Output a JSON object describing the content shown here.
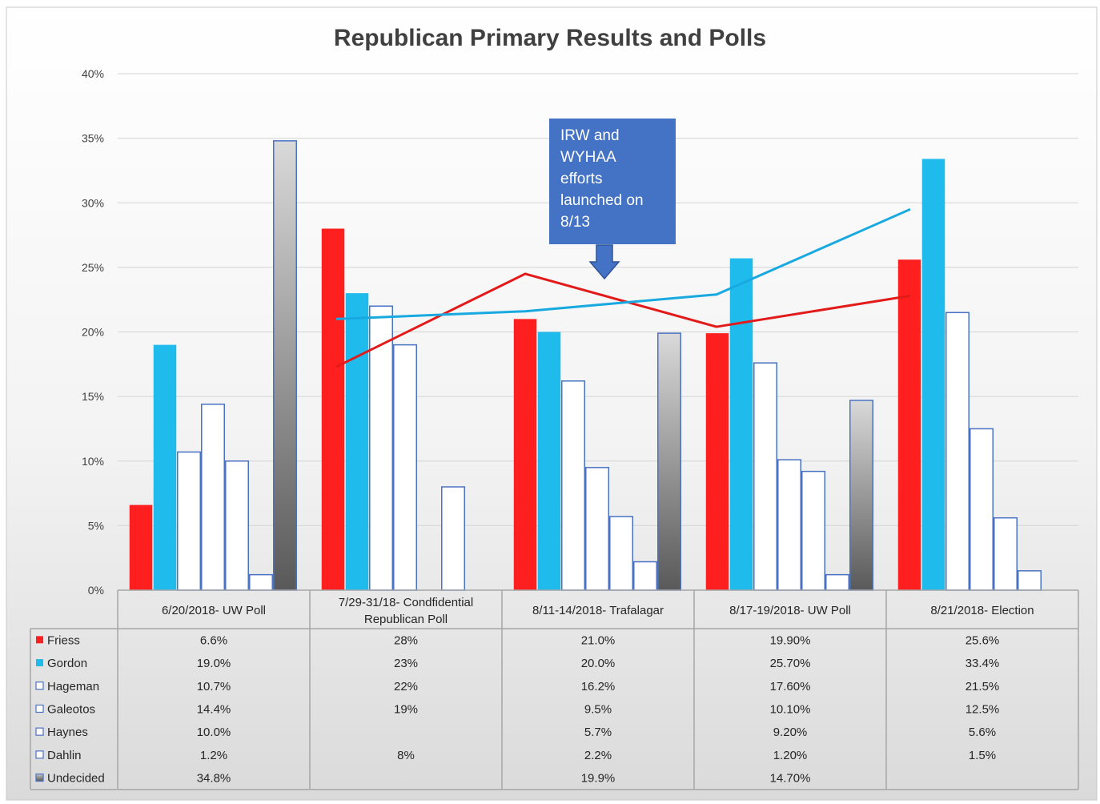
{
  "chart_data": {
    "type": "bar",
    "title": "Republican Primary Results and Polls",
    "xlabel": "",
    "ylabel": "",
    "ylim": [
      0,
      40
    ],
    "yticks": [
      "0%",
      "5%",
      "10%",
      "15%",
      "20%",
      "25%",
      "30%",
      "35%",
      "40%"
    ],
    "grid": true,
    "legend": "data-table",
    "categories": [
      [
        "6/20/2018- UW Poll"
      ],
      [
        "7/29-31/18- Condfidential",
        "Republican Poll"
      ],
      [
        "8/11-14/2018- Trafalagar"
      ],
      [
        "8/17-19/2018- UW Poll"
      ],
      [
        "8/21/2018- Election"
      ]
    ],
    "series": [
      {
        "name": "Friess",
        "style": "solid",
        "color": "#ff1f1f",
        "values": [
          6.6,
          28,
          21.0,
          19.9,
          25.6
        ],
        "labels": [
          "6.6%",
          "28%",
          "21.0%",
          "19.90%",
          "25.6%"
        ]
      },
      {
        "name": "Gordon",
        "style": "solid",
        "color": "#1fbbec",
        "values": [
          19.0,
          23,
          20.0,
          25.7,
          33.4
        ],
        "labels": [
          "19.0%",
          "23%",
          "20.0%",
          "25.70%",
          "33.4%"
        ]
      },
      {
        "name": "Hageman",
        "style": "outline",
        "color": "#4a72c4",
        "values": [
          10.7,
          22,
          16.2,
          17.6,
          21.5
        ],
        "labels": [
          "10.7%",
          "22%",
          "16.2%",
          "17.60%",
          "21.5%"
        ]
      },
      {
        "name": "Galeotos",
        "style": "outline",
        "color": "#4a72c4",
        "values": [
          14.4,
          19,
          9.5,
          10.1,
          12.5
        ],
        "labels": [
          "14.4%",
          "19%",
          "9.5%",
          "10.10%",
          "12.5%"
        ]
      },
      {
        "name": "Haynes",
        "style": "outline",
        "color": "#4a72c4",
        "values": [
          10.0,
          null,
          5.7,
          9.2,
          5.6
        ],
        "labels": [
          "10.0%",
          "",
          "5.7%",
          "9.20%",
          "5.6%"
        ]
      },
      {
        "name": "Dahlin",
        "style": "outline",
        "color": "#4a72c4",
        "values": [
          1.2,
          8,
          2.2,
          1.2,
          1.5
        ],
        "labels": [
          "1.2%",
          "8%",
          "2.2%",
          "1.20%",
          "1.5%"
        ]
      },
      {
        "name": "Undecided",
        "style": "gradient",
        "color": "#9a9a9a",
        "values": [
          34.8,
          null,
          19.9,
          14.7,
          null
        ],
        "labels": [
          "34.8%",
          "",
          "19.9%",
          "14.70%",
          ""
        ]
      }
    ],
    "trendlines": [
      {
        "series": "Friess",
        "color": "#e31a1a",
        "points": [
          [
            1,
            17.3
          ],
          [
            2,
            24.5
          ],
          [
            3,
            20.4
          ],
          [
            4,
            22.8
          ]
        ]
      },
      {
        "series": "Gordon",
        "color": "#17a9e0",
        "points": [
          [
            1,
            21.0
          ],
          [
            2,
            21.6
          ],
          [
            3,
            22.9
          ],
          [
            4,
            29.5
          ]
        ]
      }
    ],
    "annotation": {
      "lines": [
        "IRW and",
        "WYHAA",
        "efforts",
        "launched on",
        "8/13"
      ],
      "color": "#4472c4"
    }
  }
}
